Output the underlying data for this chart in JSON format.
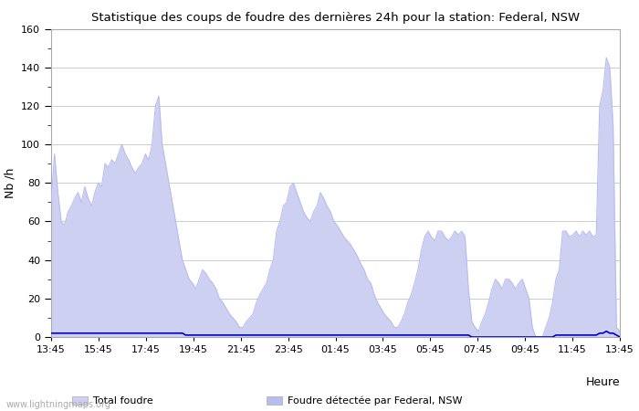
{
  "title": "Statistique des coups de foudre des dernières 24h pour la station: Federal, NSW",
  "xlabel": "Heure",
  "ylabel": "Nb /h",
  "ylim": [
    0,
    160
  ],
  "yticks": [
    0,
    20,
    40,
    60,
    80,
    100,
    120,
    140,
    160
  ],
  "xtick_labels": [
    "13:45",
    "15:45",
    "17:45",
    "19:45",
    "21:45",
    "23:45",
    "01:45",
    "03:45",
    "05:45",
    "07:45",
    "09:45",
    "11:45",
    "13:45"
  ],
  "watermark": "www.lightningmaps.org",
  "bg_color": "#ffffff",
  "plot_bg_color": "#ffffff",
  "grid_color": "#cccccc",
  "fill_total_color": "#cdd0f0",
  "fill_station_color": "#b8bdf0",
  "line_color": "#0000cc",
  "total_foudre": [
    70,
    95,
    75,
    60,
    58,
    65,
    68,
    72,
    75,
    70,
    78,
    72,
    68,
    75,
    80,
    78,
    90,
    88,
    92,
    90,
    95,
    100,
    95,
    92,
    88,
    85,
    88,
    90,
    95,
    92,
    100,
    120,
    125,
    100,
    90,
    80,
    70,
    60,
    50,
    40,
    35,
    30,
    28,
    25,
    30,
    35,
    33,
    30,
    28,
    25,
    20,
    18,
    15,
    12,
    10,
    8,
    5,
    5,
    8,
    10,
    12,
    18,
    22,
    25,
    28,
    35,
    40,
    55,
    60,
    68,
    70,
    78,
    80,
    75,
    70,
    65,
    62,
    60,
    65,
    68,
    75,
    72,
    68,
    65,
    60,
    58,
    55,
    52,
    50,
    48,
    45,
    42,
    38,
    35,
    30,
    28,
    22,
    18,
    15,
    12,
    10,
    8,
    5,
    5,
    8,
    12,
    18,
    22,
    28,
    35,
    45,
    52,
    55,
    52,
    50,
    55,
    55,
    52,
    50,
    52,
    55,
    53,
    55,
    52,
    25,
    8,
    5,
    3,
    8,
    12,
    18,
    25,
    30,
    28,
    25,
    30,
    30,
    28,
    25,
    28,
    30,
    25,
    20,
    5,
    0,
    0,
    0,
    5,
    10,
    18,
    30,
    35,
    55,
    55,
    52,
    53,
    55,
    52,
    55,
    53,
    55,
    52,
    53,
    120,
    128,
    145,
    140,
    110,
    5,
    3
  ],
  "moyenne": [
    2,
    2,
    2,
    2,
    2,
    2,
    2,
    2,
    2,
    2,
    2,
    2,
    2,
    2,
    2,
    2,
    2,
    2,
    2,
    2,
    2,
    2,
    2,
    2,
    2,
    2,
    2,
    2,
    2,
    2,
    2,
    2,
    2,
    2,
    2,
    2,
    2,
    2,
    2,
    2,
    1,
    1,
    1,
    1,
    1,
    1,
    1,
    1,
    1,
    1,
    1,
    1,
    1,
    1,
    1,
    1,
    1,
    1,
    1,
    1,
    1,
    1,
    1,
    1,
    1,
    1,
    1,
    1,
    1,
    1,
    1,
    1,
    1,
    1,
    1,
    1,
    1,
    1,
    1,
    1,
    1,
    1,
    1,
    1,
    1,
    1,
    1,
    1,
    1,
    1,
    1,
    1,
    1,
    1,
    1,
    1,
    1,
    1,
    1,
    1,
    1,
    1,
    1,
    1,
    1,
    1,
    1,
    1,
    1,
    1,
    1,
    1,
    1,
    1,
    1,
    1,
    1,
    1,
    1,
    1,
    1,
    1,
    1,
    1,
    1,
    0,
    0,
    0,
    0,
    0,
    0,
    0,
    0,
    0,
    0,
    0,
    0,
    0,
    0,
    0,
    0,
    0,
    0,
    0,
    0,
    0,
    0,
    0,
    0,
    0,
    1,
    1,
    1,
    1,
    1,
    1,
    1,
    1,
    1,
    1,
    1,
    1,
    1,
    2,
    2,
    3,
    2,
    2,
    1,
    0
  ],
  "n_points": 170,
  "legend_total_label": "Total foudre",
  "legend_station_label": "Foudre détectée par Federal, NSW"
}
